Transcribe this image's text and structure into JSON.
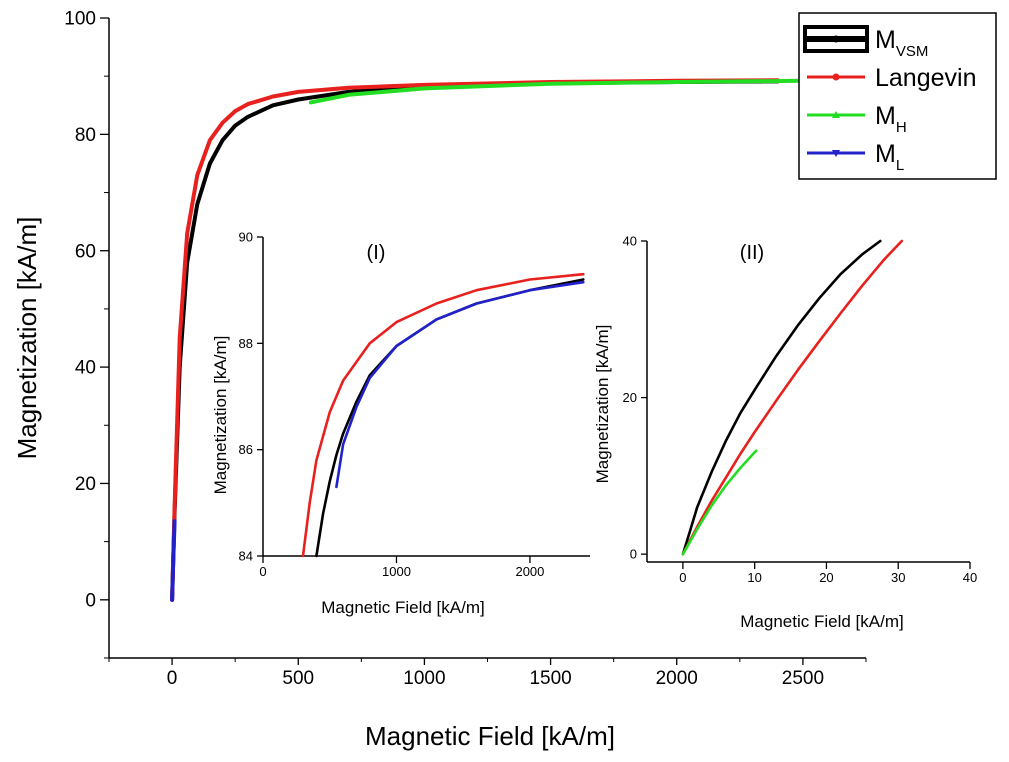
{
  "chart_data": [
    {
      "id": "main",
      "type": "line",
      "xlabel": "Magnetic Field [kA/m]",
      "ylabel": "Magnetization [kA/m]",
      "xlim": [
        -250,
        2750
      ],
      "ylim": [
        -10,
        100
      ],
      "xticks": [
        0,
        500,
        1000,
        1500,
        2000,
        2500
      ],
      "yticks": [
        0,
        20,
        40,
        60,
        80,
        100
      ],
      "legend_position": "top-right",
      "series": [
        {
          "name": "M_VSM",
          "label_main": "M",
          "label_sub": "VSM",
          "color": "#000000",
          "marker": "circle",
          "x": [
            0,
            10,
            30,
            60,
            100,
            150,
            200,
            250,
            300,
            400,
            500,
            700,
            1000,
            1500,
            2000,
            2400
          ],
          "y": [
            0,
            15,
            40,
            58,
            68,
            75,
            79,
            81.5,
            83,
            85,
            86,
            87.3,
            88.2,
            88.8,
            89,
            89.1
          ]
        },
        {
          "name": "Langevin",
          "label_main": "Langevin",
          "label_sub": "",
          "color": "#e8201e",
          "marker": "circle",
          "x": [
            0,
            10,
            30,
            60,
            100,
            150,
            200,
            250,
            300,
            400,
            500,
            700,
            1000,
            1500,
            2000,
            2400
          ],
          "y": [
            0,
            16,
            45,
            63,
            73,
            79,
            82,
            84,
            85.2,
            86.5,
            87.3,
            88,
            88.5,
            89,
            89.2,
            89.3
          ]
        },
        {
          "name": "M_H",
          "label_main": "M",
          "label_sub": "H",
          "color": "#22dd22",
          "marker": "triangle-up",
          "x": [
            550,
            700,
            1000,
            1500,
            2000,
            2500
          ],
          "y": [
            85.5,
            86.8,
            87.9,
            88.7,
            89,
            89.2
          ]
        },
        {
          "name": "M_L",
          "label_main": "M",
          "label_sub": "L",
          "color": "#2222cc",
          "marker": "triangle-down",
          "x": [
            0,
            2,
            5,
            8,
            10
          ],
          "y": [
            0,
            3,
            7,
            11,
            13.5
          ]
        }
      ]
    },
    {
      "id": "inset1",
      "type": "line",
      "title": "(I)",
      "xlabel": "Magnetic Field [kA/m]",
      "ylabel": "Magnetization [kA/m]",
      "xlim": [
        0,
        2450
      ],
      "ylim": [
        84,
        90
      ],
      "xticks": [
        0,
        1000,
        2000
      ],
      "yticks": [
        84,
        86,
        88,
        90
      ],
      "series": [
        {
          "name": "Langevin",
          "color": "#e8201e",
          "x": [
            300,
            350,
            400,
            500,
            600,
            800,
            1000,
            1300,
            1600,
            2000,
            2400
          ],
          "y": [
            84,
            85,
            85.8,
            86.7,
            87.3,
            88,
            88.4,
            88.75,
            89,
            89.2,
            89.3
          ]
        },
        {
          "name": "M_VSM",
          "color": "#000000",
          "x": [
            400,
            450,
            500,
            550,
            600,
            700,
            800,
            1000,
            1300,
            1600,
            2000,
            2400
          ],
          "y": [
            84,
            84.8,
            85.4,
            85.9,
            86.3,
            86.9,
            87.4,
            87.95,
            88.45,
            88.75,
            89,
            89.2
          ]
        },
        {
          "name": "M_L",
          "color": "#2222cc",
          "x": [
            550,
            600,
            700,
            800,
            1000,
            1300,
            1600,
            2000,
            2400
          ],
          "y": [
            85.3,
            86.1,
            86.8,
            87.35,
            87.95,
            88.45,
            88.75,
            89,
            89.15
          ]
        }
      ]
    },
    {
      "id": "inset2",
      "type": "line",
      "title": "(II)",
      "xlabel": "Magnetic Field [kA/m]",
      "ylabel": "Magnetization [kA/m]",
      "xlim": [
        -5,
        40
      ],
      "ylim": [
        -1,
        40
      ],
      "xticks": [
        0,
        10,
        20,
        30,
        40
      ],
      "yticks": [
        0,
        20,
        40
      ],
      "series": [
        {
          "name": "M_VSM",
          "color": "#000000",
          "x": [
            0,
            1,
            2,
            4,
            6,
            8,
            10,
            13,
            16,
            19,
            22,
            25,
            27.5
          ],
          "y": [
            0,
            3,
            6,
            10.5,
            14.5,
            18,
            21,
            25.3,
            29.2,
            32.7,
            35.8,
            38.3,
            40
          ]
        },
        {
          "name": "Langevin",
          "color": "#e8201e",
          "x": [
            0,
            2,
            4,
            6,
            8,
            10,
            13,
            16,
            19,
            22,
            25,
            28,
            30.5
          ],
          "y": [
            0,
            3.5,
            6.8,
            9.8,
            12.8,
            15.6,
            19.6,
            23.5,
            27.2,
            30.8,
            34.3,
            37.6,
            40
          ]
        },
        {
          "name": "M_H",
          "color": "#22dd22",
          "x": [
            0,
            2,
            4,
            6,
            8,
            10.2
          ],
          "y": [
            0,
            3.2,
            6.2,
            8.8,
            11,
            13.2
          ]
        }
      ]
    }
  ]
}
